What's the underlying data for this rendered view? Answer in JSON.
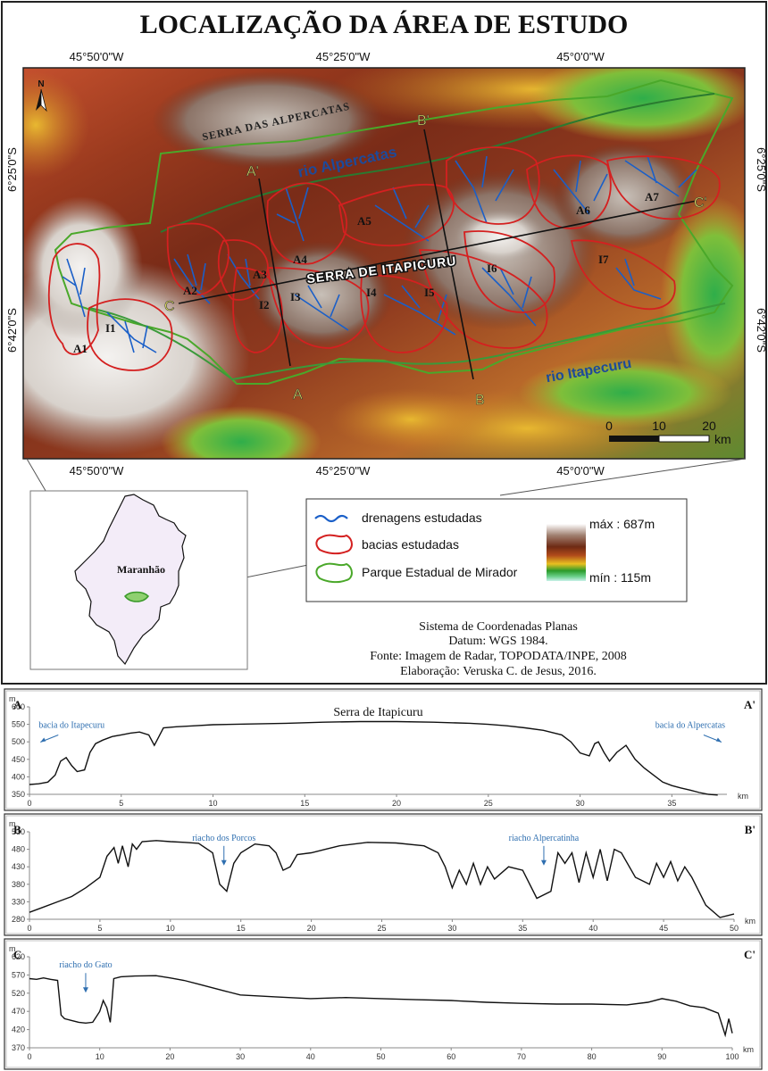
{
  "title": "LOCALIZAÇÃO DA ÁREA DE ESTUDO",
  "colors": {
    "basin": "#d42020",
    "drainage": "#1a5fc8",
    "park": "#4aa82a",
    "section_label": "#f0f060",
    "river_label": "#1d4a9a"
  },
  "map": {
    "coords": {
      "top": [
        "45°50'0\"W",
        "45°25'0\"W",
        "45°0'0\"W"
      ],
      "bottom": [
        "45°50'0\"W",
        "45°25'0\"W",
        "45°0'0\"W"
      ],
      "left": [
        "6°25'0\"S",
        "6°42'0\"S"
      ],
      "right": [
        "6°25'0\"S",
        "6°42'0\"S"
      ]
    },
    "north": "N",
    "labels": {
      "serra_alpercatas": "SERRA DAS ALPERCATAS",
      "serra_itapicuru": "SERRA DE ITAPICURU",
      "rio_alpercatas": "rio Alpercatas",
      "rio_itapecuru": "rio Itapecuru"
    },
    "basins": {
      "a1": "A1",
      "a2": "A2",
      "a3": "A3",
      "a4": "A4",
      "a5": "A5",
      "a6": "A6",
      "a7": "A7",
      "i1": "I1",
      "i2": "I2",
      "i3": "I3",
      "i4": "I4",
      "i5": "I5",
      "i6": "I6",
      "i7": "I7"
    },
    "sections": {
      "a": "A",
      "a_prime": "A'",
      "b": "B",
      "b_prime": "B'",
      "c": "C",
      "c_prime": "C'"
    },
    "scale": {
      "ticks": [
        "0",
        "10",
        "20"
      ],
      "unit": "km"
    }
  },
  "inset": {
    "state": "Maranhão"
  },
  "legend": {
    "drainage": "drenagens estudadas",
    "basins": "bacias estudadas",
    "park": "Parque Estadual de Mirador",
    "max": "máx : 687m",
    "min": "mín : 115m"
  },
  "credits": {
    "line1": "Sistema de Coordenadas Planas",
    "line2": "Datum: WGS 1984.",
    "line3": "Fonte: Imagem de Radar, TOPODATA/INPE, 2008",
    "line4": "Elaboração: Veruska C. de Jesus, 2016."
  },
  "chart_data": [
    {
      "type": "line",
      "title": "Serra de Itapicuru",
      "start_label": "A",
      "end_label": "A'",
      "unit_y": "m",
      "xlabel": "km",
      "xlim": [
        0,
        38
      ],
      "ylim": [
        350,
        600
      ],
      "x_ticks": [
        0,
        5,
        10,
        15,
        20,
        25,
        30,
        35
      ],
      "y_ticks": [
        350,
        400,
        450,
        500,
        550,
        600
      ],
      "annotations": [
        {
          "text": "bacia do Itapecuru",
          "x": 2.3,
          "y": 540
        },
        {
          "text": "bacia do Alpercatas",
          "x": 36,
          "y": 540
        }
      ],
      "x": [
        0,
        0.5,
        1,
        1.4,
        1.7,
        2,
        2.3,
        2.6,
        3,
        3.3,
        3.6,
        4,
        4.5,
        5,
        5.5,
        6,
        6.5,
        6.8,
        7,
        7.3,
        8,
        9,
        10,
        12,
        14,
        16,
        18,
        20,
        22,
        24,
        25,
        26,
        27,
        28,
        29,
        29.5,
        30,
        30.5,
        30.8,
        31,
        31.3,
        31.6,
        32,
        32.5,
        33,
        33.5,
        34,
        34.5,
        35,
        35.5,
        36,
        36.5,
        37,
        37.5
      ],
      "y": [
        378,
        380,
        385,
        405,
        445,
        455,
        432,
        415,
        420,
        470,
        495,
        505,
        515,
        520,
        525,
        528,
        520,
        490,
        510,
        540,
        543,
        546,
        549,
        551,
        553,
        556,
        558,
        558,
        556,
        553,
        550,
        546,
        540,
        533,
        520,
        500,
        468,
        460,
        495,
        500,
        470,
        445,
        470,
        490,
        450,
        425,
        405,
        385,
        375,
        368,
        362,
        355,
        350,
        348
      ]
    },
    {
      "type": "line",
      "start_label": "B",
      "end_label": "B'",
      "unit_y": "m",
      "xlabel": "km",
      "xlim": [
        0,
        50
      ],
      "ylim": [
        280,
        530
      ],
      "x_ticks": [
        0,
        5,
        10,
        15,
        20,
        25,
        30,
        35,
        40,
        45,
        50
      ],
      "y_ticks": [
        280,
        330,
        380,
        430,
        480,
        530
      ],
      "annotations": [
        {
          "text": "riacho dos Porcos",
          "x": 13.8,
          "y": 505
        },
        {
          "text": "riacho Alpercatinha",
          "x": 36.5,
          "y": 505
        }
      ],
      "x": [
        0,
        1,
        2,
        3,
        4,
        4.5,
        5,
        5.5,
        6,
        6.3,
        6.6,
        7,
        7.3,
        7.6,
        8,
        9,
        10,
        11,
        12,
        13,
        13.5,
        14,
        14.5,
        15,
        16,
        17,
        17.5,
        18,
        18.5,
        19,
        20,
        21,
        22,
        24,
        26,
        28,
        29,
        29.5,
        30,
        30.5,
        31,
        31.5,
        32,
        32.5,
        33,
        34,
        35,
        36,
        37,
        37.5,
        38,
        38.5,
        39,
        39.5,
        40,
        40.5,
        41,
        41.5,
        42,
        43,
        44,
        44.5,
        45,
        45.5,
        46,
        46.5,
        47,
        47.5,
        48,
        49,
        50
      ],
      "y": [
        300,
        315,
        330,
        345,
        370,
        385,
        400,
        460,
        485,
        440,
        490,
        430,
        495,
        480,
        502,
        505,
        502,
        500,
        497,
        470,
        380,
        360,
        440,
        470,
        495,
        490,
        470,
        420,
        430,
        465,
        470,
        480,
        490,
        500,
        498,
        490,
        470,
        430,
        370,
        420,
        380,
        440,
        380,
        430,
        395,
        430,
        420,
        340,
        360,
        470,
        440,
        470,
        385,
        470,
        400,
        480,
        390,
        480,
        470,
        400,
        380,
        440,
        400,
        445,
        390,
        430,
        400,
        360,
        320,
        285,
        295
      ]
    },
    {
      "type": "line",
      "start_label": "C",
      "end_label": "C'",
      "unit_y": "m",
      "xlabel": "km",
      "xlim": [
        0,
        100
      ],
      "ylim": [
        370,
        620
      ],
      "x_ticks": [
        0,
        10,
        20,
        30,
        40,
        50,
        60,
        70,
        80,
        90,
        100
      ],
      "y_ticks": [
        370,
        420,
        470,
        520,
        570,
        620
      ],
      "annotations": [
        {
          "text": "riacho do Gato",
          "x": 8,
          "y": 590
        }
      ],
      "x": [
        0,
        1,
        2,
        3,
        4,
        4.5,
        5,
        6,
        7,
        8,
        9,
        10,
        10.5,
        11,
        11.5,
        12,
        13,
        15,
        18,
        20,
        22,
        24,
        26,
        28,
        30,
        35,
        40,
        45,
        50,
        55,
        60,
        65,
        70,
        75,
        80,
        85,
        88,
        90,
        92,
        94,
        96,
        98,
        99,
        99.5,
        100
      ],
      "y": [
        560,
        558,
        562,
        558,
        555,
        460,
        450,
        445,
        440,
        438,
        440,
        470,
        500,
        480,
        440,
        560,
        565,
        567,
        568,
        562,
        555,
        545,
        535,
        525,
        515,
        510,
        505,
        508,
        505,
        502,
        500,
        495,
        492,
        490,
        490,
        488,
        495,
        505,
        498,
        485,
        480,
        465,
        405,
        450,
        410
      ]
    }
  ]
}
